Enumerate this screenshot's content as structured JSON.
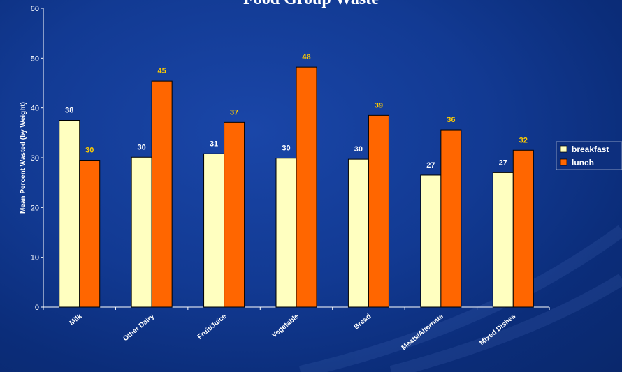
{
  "colors": {
    "breakfast": "#ffffc0",
    "lunch": "#ff6600",
    "data_label": "#ffcc00",
    "axis": "#ffffff"
  },
  "chart_data": {
    "type": "bar",
    "title": "Food Group Waste",
    "ylabel": "Mean Percent Wasted (by Weight)",
    "xlabel": "",
    "ylim": [
      0,
      60
    ],
    "yticks": [
      0,
      10,
      20,
      30,
      40,
      50,
      60
    ],
    "grid": false,
    "legend_position": "right",
    "categories": [
      "Milk",
      "Other Dairy",
      "Fruit/Juice",
      "Vegetable",
      "Bread",
      "Meats/Alternate",
      "Mixed Dishes"
    ],
    "series": [
      {
        "name": "breakfast",
        "values": [
          37.5,
          30.1,
          30.8,
          29.9,
          29.7,
          26.5,
          27.0
        ],
        "labels": [
          "38",
          "30",
          "31",
          "30",
          "30",
          "27",
          "27"
        ]
      },
      {
        "name": "lunch",
        "values": [
          29.5,
          45.4,
          37.1,
          48.2,
          38.5,
          35.6,
          31.5
        ],
        "labels": [
          "30",
          "45",
          "37",
          "48",
          "39",
          "36",
          "32"
        ]
      }
    ]
  }
}
